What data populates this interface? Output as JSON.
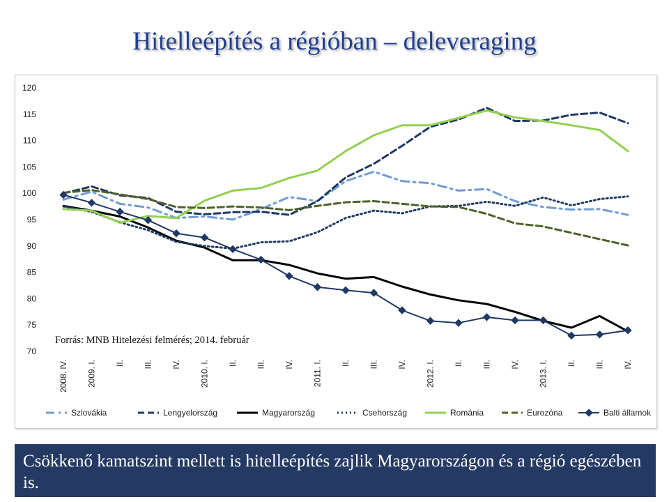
{
  "slide": {
    "title": "Hitelleépítés a régióban – deleveraging",
    "source": "Forrás: MNB Hitelezési felmérés; 2014. február",
    "caption": "Csökkenő kamatszint mellett is hitelleépítés zajlik Magyarországon és a régió egészében is."
  },
  "chart_data": {
    "type": "line",
    "title": "",
    "xlabel": "",
    "ylabel": "",
    "ylim": [
      70,
      120
    ],
    "yticks": [
      70,
      75,
      80,
      85,
      90,
      95,
      100,
      105,
      110,
      115,
      120
    ],
    "grid": false,
    "legend": "bottom",
    "categories": [
      "2008. IV.",
      "2009. I.",
      "II.",
      "III.",
      "IV.",
      "2010. I.",
      "II.",
      "III.",
      "IV.",
      "2011. I.",
      "II.",
      "III.",
      "IV.",
      "2012. I.",
      "II.",
      "III.",
      "IV.",
      "2013. I.",
      "II.",
      "III.",
      "IV."
    ],
    "series": [
      {
        "name": "Szlovákia",
        "color": "#6f9bd4",
        "dash": "dashdot",
        "values": [
          98.8,
          100.3,
          98.0,
          97.3,
          95.3,
          95.6,
          95.0,
          97.0,
          99.3,
          98.5,
          102.3,
          104.1,
          102.3,
          101.9,
          100.5,
          100.8,
          98.5,
          97.4,
          96.9,
          97.0,
          95.9
        ]
      },
      {
        "name": "Lengyelország",
        "color": "#1f3864",
        "dash": "dash",
        "values": [
          100.0,
          101.3,
          99.6,
          99.1,
          96.5,
          96.0,
          96.4,
          96.5,
          95.9,
          98.5,
          103.0,
          105.6,
          109.0,
          112.6,
          114.0,
          116.2,
          113.7,
          113.8,
          114.9,
          115.3,
          113.3
        ]
      },
      {
        "name": "Magyarország",
        "color": "#000000",
        "dash": "solid",
        "values": [
          97.6,
          96.7,
          95.6,
          93.5,
          91.0,
          89.7,
          87.3,
          87.3,
          86.4,
          84.8,
          83.8,
          84.1,
          82.3,
          80.8,
          79.7,
          79.0,
          77.5,
          75.8,
          74.5,
          76.7,
          73.8
        ]
      },
      {
        "name": "Csehország",
        "color": "#1f3864",
        "dash": "dot",
        "values": [
          97.5,
          96.5,
          94.5,
          93.0,
          90.8,
          90.0,
          89.5,
          90.7,
          90.9,
          92.6,
          95.3,
          96.7,
          96.2,
          97.5,
          97.6,
          98.4,
          97.6,
          99.2,
          97.7,
          98.9,
          99.4
        ]
      },
      {
        "name": "Románia",
        "color": "#92d050",
        "dash": "solid",
        "values": [
          97.0,
          96.7,
          94.4,
          95.7,
          95.3,
          98.6,
          100.5,
          101.0,
          102.9,
          104.3,
          108.0,
          111.0,
          112.9,
          112.9,
          114.3,
          115.7,
          114.4,
          113.7,
          112.9,
          112.0,
          108.0
        ]
      },
      {
        "name": "Eurozóna",
        "color": "#4f6228",
        "dash": "dash",
        "values": [
          100.1,
          100.6,
          99.8,
          98.9,
          97.4,
          97.2,
          97.5,
          97.3,
          96.8,
          97.6,
          98.3,
          98.5,
          98.0,
          97.5,
          97.4,
          96.1,
          94.3,
          93.7,
          92.5,
          91.3,
          90.1
        ]
      },
      {
        "name": "Balti államok",
        "color": "#1f3864",
        "dash": "solid-marker",
        "values": [
          99.7,
          98.2,
          96.5,
          94.9,
          92.4,
          91.6,
          89.4,
          87.4,
          84.3,
          82.2,
          81.6,
          81.1,
          77.8,
          75.8,
          75.4,
          76.5,
          75.9,
          75.9,
          73.0,
          73.2,
          74.0
        ]
      }
    ]
  }
}
